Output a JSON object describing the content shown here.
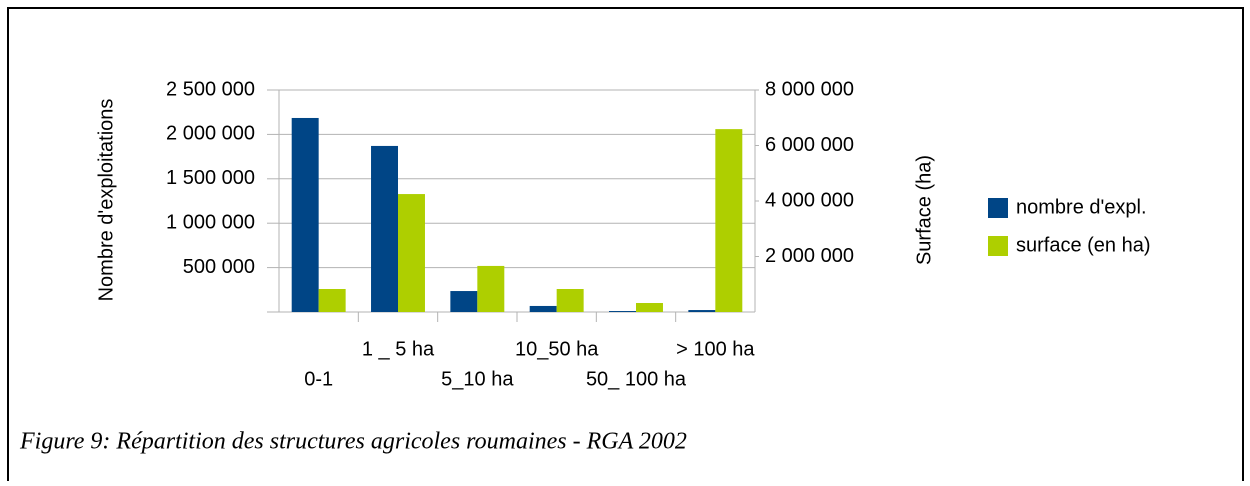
{
  "chart_data": {
    "type": "bar",
    "caption": "Figure 9: Répartition des structures agricoles roumaines - RGA 2002",
    "ylabel": "Nombre d'exploitations",
    "y2label": "Surface (ha)",
    "categories": [
      "0-1",
      "1 _ 5 ha",
      "5_10 ha",
      "10_50 ha",
      "50_ 100 ha",
      "> 100 ha"
    ],
    "series": [
      {
        "name": "nombre d'expl.",
        "color": "#004586",
        "values": [
          2185000,
          1870000,
          236000,
          68000,
          11000,
          22000
        ]
      },
      {
        "name": "surface (en ha)",
        "color": "#aecf00",
        "axis": "y2",
        "values": [
          829000,
          4250000,
          1660000,
          829000,
          324000,
          6590000
        ]
      }
    ],
    "ylim": [
      0,
      2500000
    ],
    "yticks": [
      {
        "value": 500000,
        "label": "500 000"
      },
      {
        "value": 1000000,
        "label": "1 000 000"
      },
      {
        "value": 1500000,
        "label": "1 500 000"
      },
      {
        "value": 2000000,
        "label": "2 000 000"
      },
      {
        "value": 2500000,
        "label": "2 500 000"
      }
    ],
    "y2lim": [
      0,
      8000000
    ],
    "y2ticks": [
      {
        "value": 2000000,
        "label": "2 000 000"
      },
      {
        "value": 4000000,
        "label": "4 000 000"
      },
      {
        "value": 6000000,
        "label": "6 000 000"
      },
      {
        "value": 8000000,
        "label": "8 000 000"
      }
    ],
    "grid": true,
    "legend": "right"
  }
}
